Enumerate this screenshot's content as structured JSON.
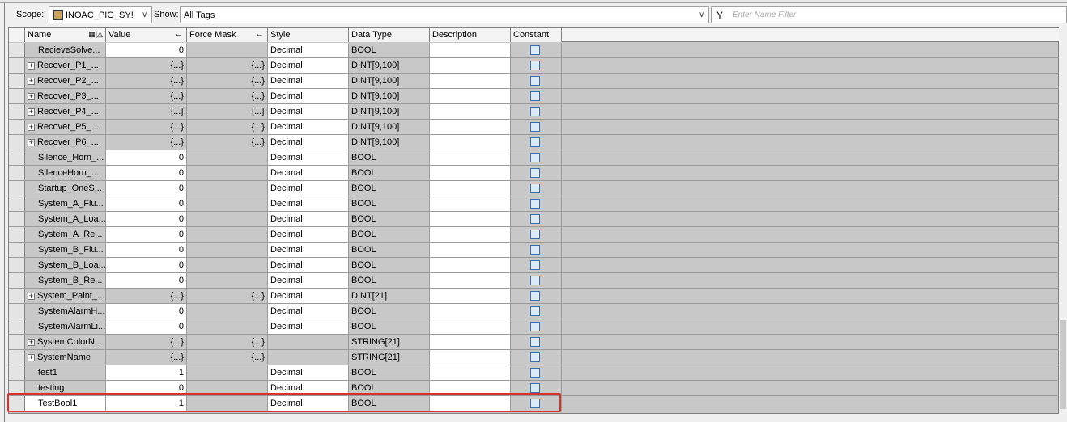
{
  "toolbar": {
    "scope_label": "Scope:",
    "scope_value": "INOAC_PIG_SY!",
    "show_label": "Show:",
    "show_value": "All Tags",
    "filter_placeholder": "Enter Name Filter"
  },
  "columns": [
    "Name",
    "Value",
    "Force Mask",
    "Style",
    "Data Type",
    "Description",
    "Constant"
  ],
  "rows": [
    {
      "name": "RecieveSolve...",
      "value": "0",
      "force": "",
      "style": "Decimal",
      "type": "BOOL",
      "expand": false
    },
    {
      "name": "Recover_P1_...",
      "value": "{...}",
      "force": "{...}",
      "style": "Decimal",
      "type": "DINT[9,100]",
      "expand": true
    },
    {
      "name": "Recover_P2_...",
      "value": "{...}",
      "force": "{...}",
      "style": "Decimal",
      "type": "DINT[9,100]",
      "expand": true
    },
    {
      "name": "Recover_P3_...",
      "value": "{...}",
      "force": "{...}",
      "style": "Decimal",
      "type": "DINT[9,100]",
      "expand": true
    },
    {
      "name": "Recover_P4_...",
      "value": "{...}",
      "force": "{...}",
      "style": "Decimal",
      "type": "DINT[9,100]",
      "expand": true
    },
    {
      "name": "Recover_P5_...",
      "value": "{...}",
      "force": "{...}",
      "style": "Decimal",
      "type": "DINT[9,100]",
      "expand": true
    },
    {
      "name": "Recover_P6_...",
      "value": "{...}",
      "force": "{...}",
      "style": "Decimal",
      "type": "DINT[9,100]",
      "expand": true
    },
    {
      "name": "Silence_Horn_...",
      "value": "0",
      "force": "",
      "style": "Decimal",
      "type": "BOOL",
      "expand": false
    },
    {
      "name": "SilenceHorn_...",
      "value": "0",
      "force": "",
      "style": "Decimal",
      "type": "BOOL",
      "expand": false
    },
    {
      "name": "Startup_OneS...",
      "value": "0",
      "force": "",
      "style": "Decimal",
      "type": "BOOL",
      "expand": false
    },
    {
      "name": "System_A_Flu...",
      "value": "0",
      "force": "",
      "style": "Decimal",
      "type": "BOOL",
      "expand": false
    },
    {
      "name": "System_A_Loa...",
      "value": "0",
      "force": "",
      "style": "Decimal",
      "type": "BOOL",
      "expand": false
    },
    {
      "name": "System_A_Re...",
      "value": "0",
      "force": "",
      "style": "Decimal",
      "type": "BOOL",
      "expand": false
    },
    {
      "name": "System_B_Flu...",
      "value": "0",
      "force": "",
      "style": "Decimal",
      "type": "BOOL",
      "expand": false
    },
    {
      "name": "System_B_Loa...",
      "value": "0",
      "force": "",
      "style": "Decimal",
      "type": "BOOL",
      "expand": false
    },
    {
      "name": "System_B_Re...",
      "value": "0",
      "force": "",
      "style": "Decimal",
      "type": "BOOL",
      "expand": false
    },
    {
      "name": "System_Paint_...",
      "value": "{...}",
      "force": "{...}",
      "style": "Decimal",
      "type": "DINT[21]",
      "expand": true
    },
    {
      "name": "SystemAlarmH...",
      "value": "0",
      "force": "",
      "style": "Decimal",
      "type": "BOOL",
      "expand": false
    },
    {
      "name": "SystemAlarmLi...",
      "value": "0",
      "force": "",
      "style": "Decimal",
      "type": "BOOL",
      "expand": false
    },
    {
      "name": "SystemColorN...",
      "value": "{...}",
      "force": "{...}",
      "style": "",
      "type": "STRING[21]",
      "expand": true
    },
    {
      "name": "SystemName",
      "value": "{...}",
      "force": "{...}",
      "style": "",
      "type": "STRING[21]",
      "expand": true
    },
    {
      "name": "test1",
      "value": "1",
      "force": "",
      "style": "Decimal",
      "type": "BOOL",
      "expand": false
    },
    {
      "name": "testing",
      "value": "0",
      "force": "",
      "style": "Decimal",
      "type": "BOOL",
      "expand": false
    },
    {
      "name": "TestBool1",
      "value": "1",
      "force": "",
      "style": "Decimal",
      "type": "BOOL",
      "expand": false,
      "selected": true
    }
  ],
  "colors": {
    "highlight": "#d9312b",
    "checkbox": "#dbeaf7"
  }
}
